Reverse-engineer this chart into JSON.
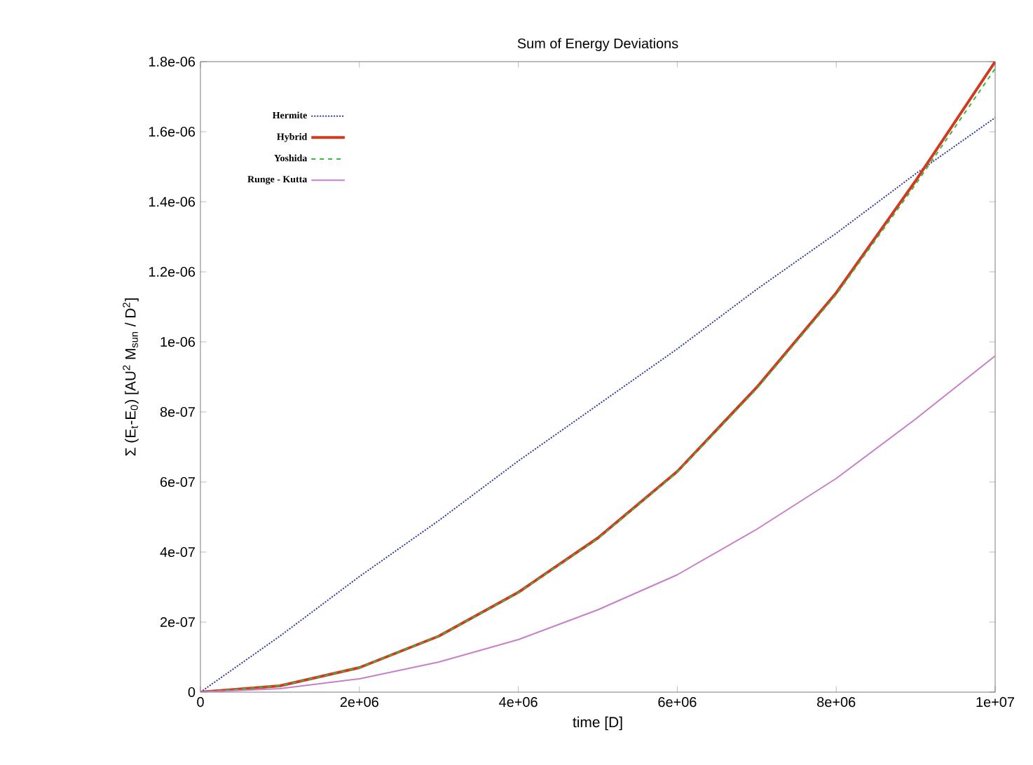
{
  "chart_data": {
    "type": "line",
    "title": "Sum of Energy Deviations",
    "xlabel": "time [D]",
    "ylabel": "Σ (E$_{t}$-E$_{0}$) [AU$^{2}$ M$_{sun}$ / D$^{2}$]",
    "x": [
      0,
      1000000,
      2000000,
      3000000,
      4000000,
      5000000,
      6000000,
      7000000,
      8000000,
      9000000,
      10000000
    ],
    "series": [
      {
        "name": "Hermite",
        "color": "#2b3a9c",
        "line_style": "dotted",
        "values": [
          0,
          1.6e-07,
          3.3e-07,
          4.9e-07,
          6.6e-07,
          8.2e-07,
          9.8e-07,
          1.15e-06,
          1.31e-06,
          1.48e-06,
          1.64e-06
        ]
      },
      {
        "name": "Hybrid",
        "color": "#d03a20",
        "line_style": "solid",
        "values": [
          0,
          1.8e-08,
          7e-08,
          1.6e-07,
          2.85e-07,
          4.4e-07,
          6.3e-07,
          8.7e-07,
          1.14e-06,
          1.46e-06,
          1.8e-06
        ]
      },
      {
        "name": "Yoshida",
        "color": "#3cb83c",
        "line_style": "dashed",
        "values": [
          0,
          1.8e-08,
          7e-08,
          1.6e-07,
          2.84e-07,
          4.38e-07,
          6.28e-07,
          8.66e-07,
          1.135e-06,
          1.45e-06,
          1.78e-06
        ]
      },
      {
        "name": "Runge - Kutta",
        "color": "#c77fc7",
        "line_style": "solid",
        "values": [
          0,
          1e-08,
          3.8e-08,
          8.6e-08,
          1.5e-07,
          2.35e-07,
          3.35e-07,
          4.65e-07,
          6.1e-07,
          7.8e-07,
          9.6e-07
        ]
      }
    ],
    "xlim": [
      0,
      10000000
    ],
    "ylim": [
      0,
      1.8e-06
    ],
    "xticks": [
      0,
      {
        "value": 2000000,
        "label": "2e+06"
      },
      {
        "value": 4000000,
        "label": "4e+06"
      },
      {
        "value": 6000000,
        "label": "6e+06"
      },
      {
        "value": 8000000,
        "label": "8e+06"
      },
      {
        "value": 10000000,
        "label": "1e+07"
      }
    ],
    "yticks": [
      0,
      {
        "value": 2e-07,
        "label": "2e-07"
      },
      {
        "value": 4e-07,
        "label": "4e-07"
      },
      {
        "value": 6e-07,
        "label": "6e-07"
      },
      {
        "value": 8e-07,
        "label": "8e-07"
      },
      {
        "value": 1e-06,
        "label": "1e-06"
      },
      {
        "value": 1.2e-06,
        "label": "1.2e-06"
      },
      {
        "value": 1.4e-06,
        "label": "1.4e-06"
      },
      {
        "value": 1.6e-06,
        "label": "1.6e-06"
      },
      {
        "value": 1.8e-06,
        "label": "1.8e-06"
      }
    ],
    "legend": "top left",
    "grid": false,
    "marker": "none"
  }
}
